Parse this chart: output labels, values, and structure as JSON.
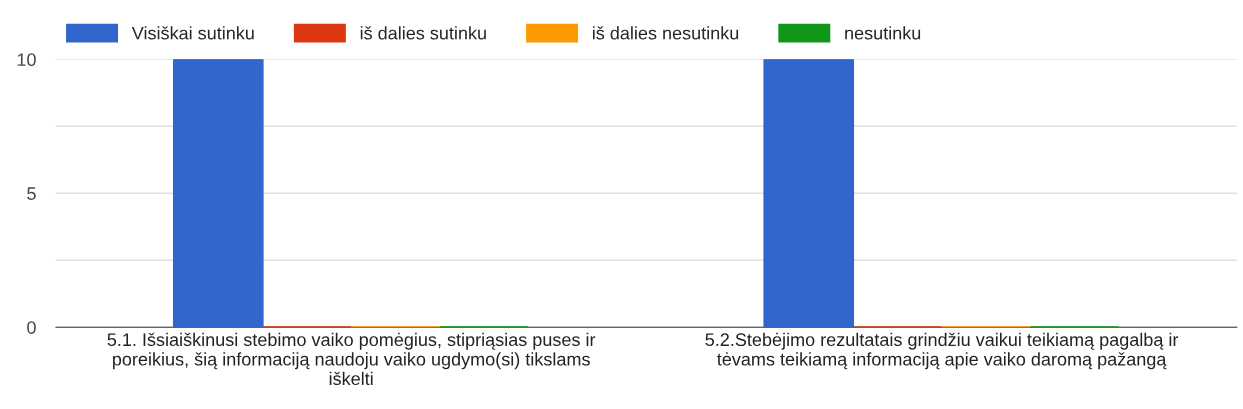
{
  "chart_data": {
    "type": "bar",
    "categories": [
      "5.1. Išsiaiškinusi stebimo vaiko pomėgius, stipriąsias puses ir poreikius, šią informaciją naudoju vaiko ugdymo(si) tikslams iškelti",
      "5.2.Stebėjimo rezultatais grindžiu vaikui teikiamą pagalbą ir tėvams teikiamą informaciją apie vaiko daromą pažangą"
    ],
    "series": [
      {
        "name": "Visiškai sutinku",
        "color": "#3366cc",
        "values": [
          10,
          10
        ]
      },
      {
        "name": "iš dalies sutinku",
        "color": "#dc3912",
        "values": [
          0,
          0
        ]
      },
      {
        "name": "iš dalies nesutinku",
        "color": "#ff9900",
        "values": [
          0,
          0
        ]
      },
      {
        "name": "nesutinku",
        "color": "#109618",
        "values": [
          0,
          0
        ]
      }
    ],
    "ylim": [
      0,
      10
    ],
    "yticks": [
      0,
      {
        "value": 2.5,
        "label": null
      },
      5,
      {
        "value": 7.5,
        "label": null
      },
      10
    ],
    "grid": "y",
    "legend": "top left"
  }
}
